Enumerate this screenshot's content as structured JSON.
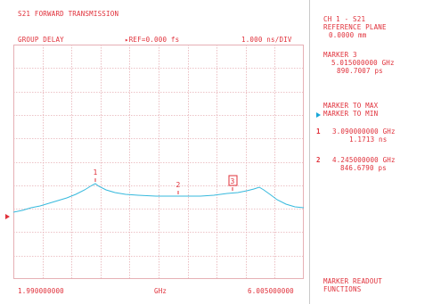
{
  "header": {
    "title": "S21 FORWARD TRANSMISSION",
    "format": "GROUP DELAY",
    "reference": "▸REF=0.000 fs",
    "scale": "1.000 ns/DIV"
  },
  "axis": {
    "start": "1.990000000",
    "unit": "GHz",
    "stop": "6.005000000"
  },
  "trace": {
    "color": "#36b9dd",
    "grid_color": "#e6b0b5",
    "marker_color": "#e0303a"
  },
  "markers": [
    {
      "label": "1"
    },
    {
      "label": "2"
    },
    {
      "label": "3"
    }
  ],
  "softkeys": {
    "channel": "CH 1 - S21",
    "ref_plane": "REFERENCE PLANE",
    "ref_plane_value": "0.0000 mm",
    "marker3_title": "MARKER 3",
    "marker3_freq": "5.015000000 GHz",
    "marker3_value": "890.7007 ps",
    "marker_to_max": "MARKER TO MAX",
    "marker_to_min": "MARKER TO MIN",
    "m1_index": "1",
    "m1_freq": "3.090000000 GHz",
    "m1_value": "1.1713 ns",
    "m2_index": "2",
    "m2_freq": "4.245000000 GHz",
    "m2_value": "846.6790 ps",
    "readout1": "MARKER READOUT",
    "readout2": "FUNCTIONS"
  }
}
